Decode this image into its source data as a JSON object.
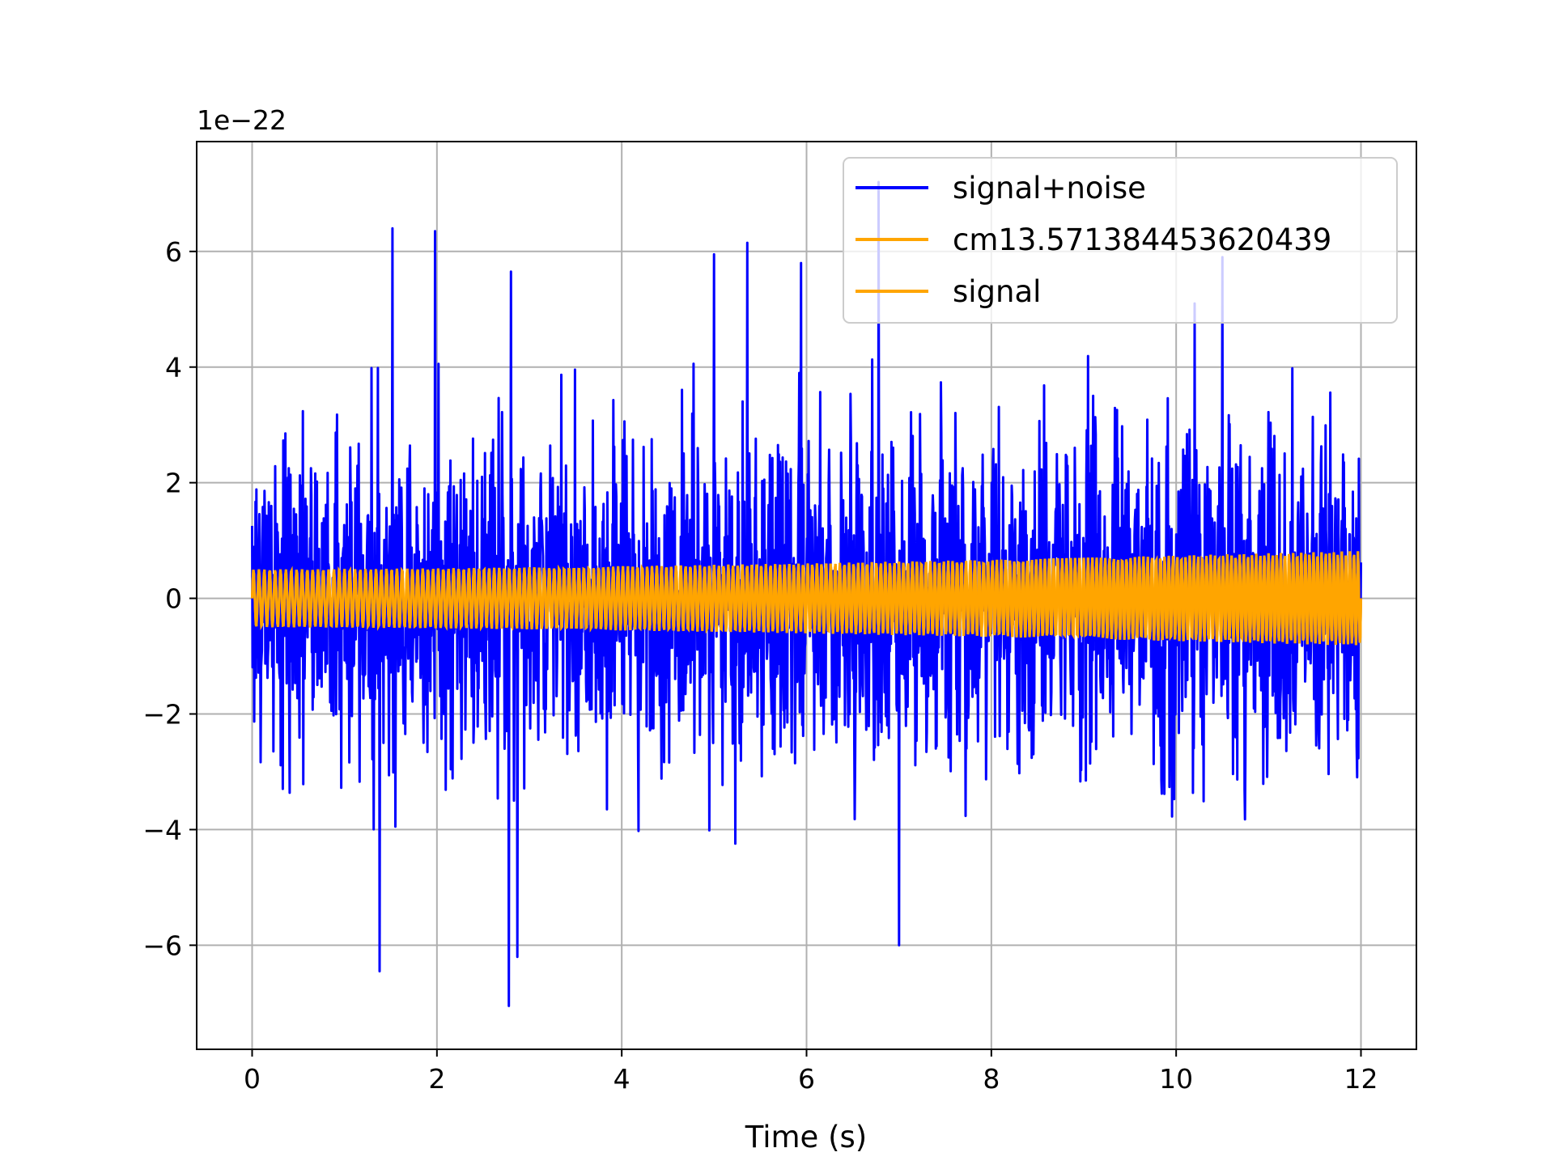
{
  "chart_data": {
    "type": "line",
    "title": "",
    "xlabel": "Time (s)",
    "ylabel": "",
    "offset_label": "1e−22",
    "xlim": [
      -0.6,
      12.6
    ],
    "ylim": [
      -7.8,
      7.9
    ],
    "xticks": [
      0,
      2,
      4,
      6,
      8,
      10,
      12
    ],
    "yticks": [
      -6,
      -4,
      -2,
      0,
      2,
      4,
      6
    ],
    "xtick_labels": [
      "0",
      "2",
      "4",
      "6",
      "8",
      "10",
      "12"
    ],
    "ytick_labels": [
      "−6",
      "−4",
      "−2",
      "0",
      "2",
      "4",
      "6"
    ],
    "grid": true,
    "legend_position": "top-right",
    "series": [
      {
        "name": "signal+noise",
        "color": "#0000ff",
        "t_range": [
          0,
          12
        ],
        "noise_amplitude_range": [
          -7.05,
          7.25
        ],
        "notable_peaks": [
          {
            "t": 1.52,
            "y": 6.4
          },
          {
            "t": 1.98,
            "y": 6.35
          },
          {
            "t": 2.8,
            "y": 5.65
          },
          {
            "t": 5.0,
            "y": 5.95
          },
          {
            "t": 5.36,
            "y": 6.15
          },
          {
            "t": 5.94,
            "y": 5.8
          },
          {
            "t": 6.78,
            "y": 7.2
          },
          {
            "t": 10.2,
            "y": 5.1
          },
          {
            "t": 10.5,
            "y": 5.9
          },
          {
            "t": 1.38,
            "y": -6.45
          },
          {
            "t": 2.78,
            "y": -7.05
          },
          {
            "t": 2.87,
            "y": -6.2
          },
          {
            "t": 7.0,
            "y": -6.0
          }
        ]
      },
      {
        "name": "cm13.571384453620439",
        "color": "#ffa500",
        "t_range": [
          0,
          12
        ],
        "amplitude_start": 0.5,
        "amplitude_end": 0.82
      },
      {
        "name": "signal",
        "color": "#ffa500",
        "t_range": [
          0,
          12
        ],
        "amplitude_start": 0.5,
        "amplitude_end": 0.82
      }
    ]
  }
}
